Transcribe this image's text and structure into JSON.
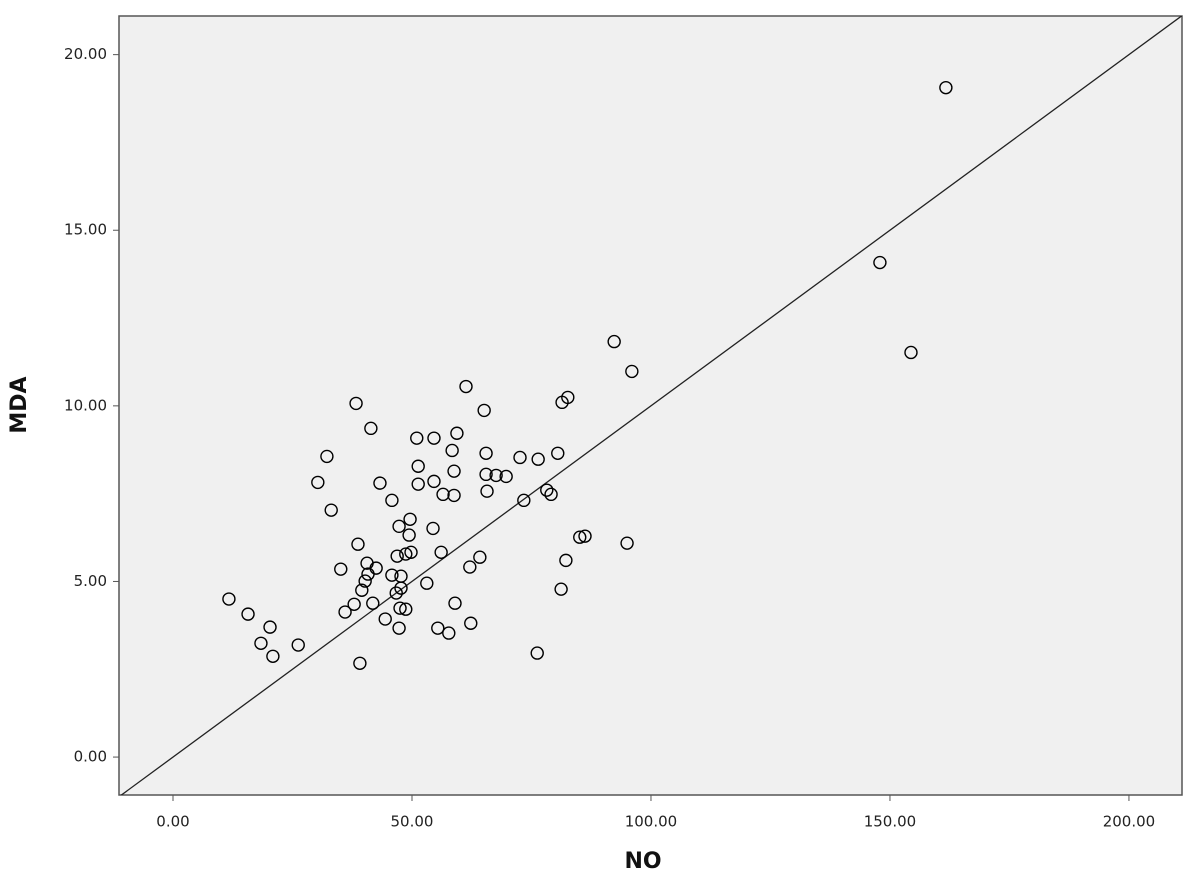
{
  "chart_data": {
    "type": "scatter",
    "x_label": "NO",
    "y_label": "MDA",
    "x": [
      11.7,
      15.7,
      18.4,
      20.3,
      20.9,
      26.2,
      30.3,
      32.2,
      33.1,
      35.1,
      36.0,
      37.9,
      38.3,
      38.7,
      39.1,
      39.5,
      40.2,
      40.6,
      40.8,
      41.4,
      41.8,
      42.5,
      43.3,
      44.4,
      45.8,
      45.8,
      46.7,
      46.9,
      47.3,
      47.3,
      47.5,
      47.7,
      47.7,
      48.7,
      48.7,
      49.4,
      49.6,
      49.8,
      51.0,
      51.3,
      51.3,
      53.1,
      54.4,
      54.6,
      54.6,
      55.4,
      56.1,
      56.5,
      57.7,
      58.4,
      58.8,
      58.8,
      59.0,
      59.4,
      61.3,
      62.1,
      62.3,
      64.2,
      65.1,
      65.5,
      65.5,
      65.7,
      67.6,
      69.7,
      72.6,
      73.4,
      76.2,
      76.4,
      78.2,
      79.1,
      80.5,
      81.2,
      81.4,
      82.2,
      82.6,
      85.1,
      86.2,
      92.3,
      95.0,
      96.0,
      147.9,
      154.4,
      161.7
    ],
    "values": [
      4.5,
      4.07,
      3.24,
      3.7,
      2.87,
      3.19,
      7.82,
      8.56,
      7.03,
      5.35,
      4.13,
      4.35,
      10.07,
      6.06,
      2.67,
      4.75,
      5.01,
      5.52,
      5.21,
      9.36,
      4.38,
      5.38,
      7.8,
      3.93,
      7.31,
      5.18,
      4.67,
      5.72,
      3.67,
      6.57,
      4.24,
      5.15,
      4.81,
      4.21,
      5.78,
      6.32,
      6.77,
      5.83,
      9.08,
      8.28,
      7.77,
      4.95,
      6.51,
      7.85,
      9.08,
      3.67,
      5.83,
      7.48,
      3.53,
      8.73,
      8.14,
      7.45,
      4.38,
      9.22,
      10.55,
      5.41,
      3.81,
      5.69,
      9.87,
      8.65,
      8.05,
      7.57,
      8.02,
      7.99,
      8.53,
      7.31,
      2.96,
      8.48,
      7.6,
      7.48,
      8.65,
      4.78,
      10.1,
      5.6,
      10.24,
      6.26,
      6.29,
      11.83,
      6.09,
      10.98,
      14.08,
      11.52,
      19.06
    ],
    "color": "#000000",
    "reference_line": {
      "slope": 0.1,
      "intercept": 0
    },
    "xlim": [
      -11.3,
      211.1
    ],
    "ylim": [
      -1.08,
      21.1
    ],
    "xticks": [
      {
        "value": 0,
        "label": "0.00"
      },
      {
        "value": 50,
        "label": "50.00"
      },
      {
        "value": 100,
        "label": "100.00"
      },
      {
        "value": 150,
        "label": "150.00"
      },
      {
        "value": 200,
        "label": "200.00"
      }
    ],
    "yticks": [
      {
        "value": 0,
        "label": "0.00"
      },
      {
        "value": 5,
        "label": "5.00"
      },
      {
        "value": 10,
        "label": "10.00"
      },
      {
        "value": 15,
        "label": "15.00"
      },
      {
        "value": 20,
        "label": "20.00"
      }
    ]
  }
}
